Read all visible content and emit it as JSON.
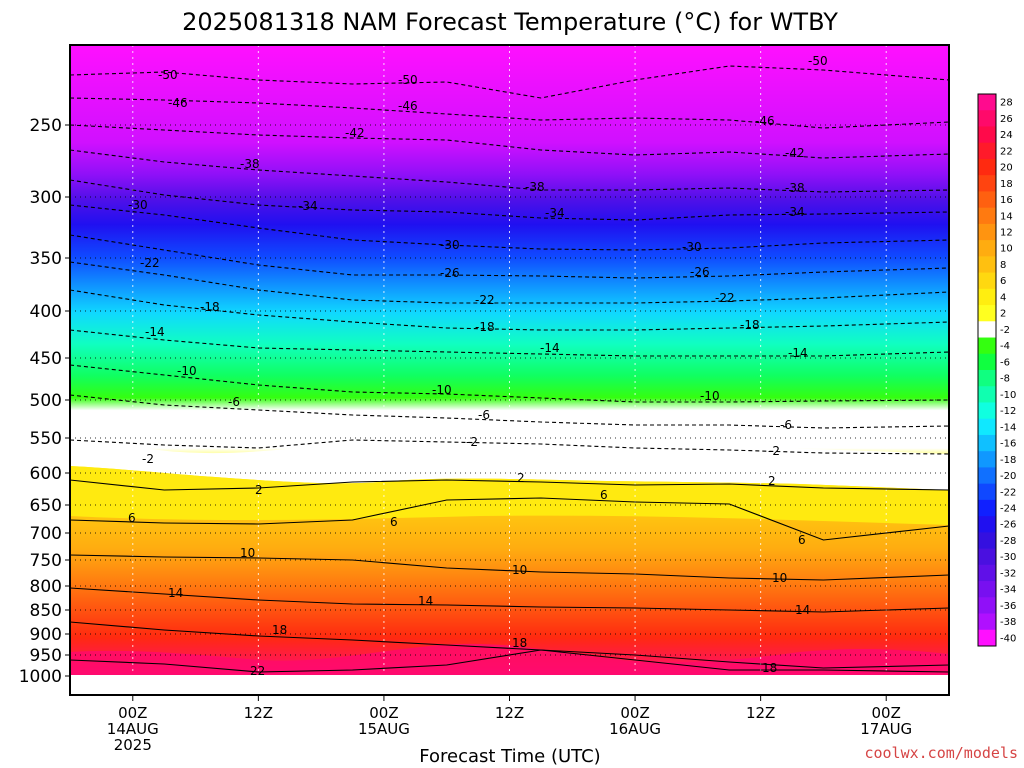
{
  "chart_data": {
    "type": "heatmap",
    "title": "2025081318 NAM Forecast Temperature (°C) for WTBY",
    "xlabel": "Forecast Time (UTC)",
    "ylabel": "",
    "credit": "coolwx.com/models",
    "pressure_levels": [
      "250",
      "300",
      "350",
      "400",
      "450",
      "500",
      "550",
      "600",
      "650",
      "700",
      "750",
      "800",
      "850",
      "900",
      "950",
      "1000"
    ],
    "ylim": [
      200,
      1000
    ],
    "x_ticks": [
      {
        "hour": 6,
        "line1": "00Z",
        "line2": "14AUG",
        "line3": "2025"
      },
      {
        "hour": 18,
        "line1": "12Z",
        "line2": "",
        "line3": ""
      },
      {
        "hour": 30,
        "line1": "00Z",
        "line2": "15AUG",
        "line3": ""
      },
      {
        "hour": 42,
        "line1": "12Z",
        "line2": "",
        "line3": ""
      },
      {
        "hour": 54,
        "line1": "00Z",
        "line2": "16AUG",
        "line3": ""
      },
      {
        "hour": 66,
        "line1": "12Z",
        "line2": "",
        "line3": ""
      },
      {
        "hour": 78,
        "line1": "00Z",
        "line2": "17AUG",
        "line3": ""
      }
    ],
    "xlim": [
      0,
      84
    ],
    "colorbar_ticks": [
      "28",
      "26",
      "24",
      "22",
      "20",
      "18",
      "16",
      "14",
      "12",
      "10",
      "8",
      "6",
      "4",
      "2",
      "-2",
      "-4",
      "-6",
      "-8",
      "-10",
      "-12",
      "-14",
      "-16",
      "-18",
      "-20",
      "-22",
      "-24",
      "-26",
      "-28",
      "-30",
      "-32",
      "-34",
      "-36",
      "-38",
      "-40"
    ],
    "colorbar_colors": [
      "#ff0b8e",
      "#ff0a6a",
      "#ff0a4a",
      "#ff1a2a",
      "#ff2a10",
      "#ff4410",
      "#ff6010",
      "#ff7a10",
      "#ff9410",
      "#ffac10",
      "#ffc010",
      "#ffd810",
      "#ffee10",
      "#ffff20",
      "#ffffff",
      "#34ff10",
      "#10ff40",
      "#10ff80",
      "#10ffb0",
      "#10ffe0",
      "#10e8ff",
      "#10c0ff",
      "#1098ff",
      "#1070ff",
      "#1048ff",
      "#1020ff",
      "#2010f0",
      "#3410e0",
      "#4a10e0",
      "#6010e8",
      "#7810f0",
      "#9010f8",
      "#b010ff",
      "#ff10ff"
    ],
    "series": [
      {
        "temp": -50,
        "values": [
          [
            0,
            -50
          ],
          [
            30,
            -50
          ],
          [
            48,
            -51
          ],
          [
            60,
            -50
          ],
          [
            72,
            -49
          ],
          [
            84,
            -50
          ]
        ]
      },
      {
        "temp": -46,
        "values": [
          [
            0,
            -46
          ],
          [
            30,
            -46
          ],
          [
            48,
            -47
          ],
          [
            72,
            -46
          ],
          [
            84,
            -46
          ]
        ]
      },
      {
        "temp": -42,
        "values": [
          [
            0,
            -42
          ],
          [
            30,
            -42
          ],
          [
            60,
            -43
          ],
          [
            84,
            -42
          ]
        ]
      },
      {
        "temp": -38,
        "values": [
          [
            0,
            -38
          ],
          [
            30,
            -37
          ],
          [
            60,
            -38
          ],
          [
            84,
            -38
          ]
        ]
      },
      {
        "temp": -34,
        "values": [
          [
            0,
            -34
          ],
          [
            30,
            -34
          ],
          [
            60,
            -34
          ],
          [
            84,
            -34
          ]
        ]
      },
      {
        "temp": -30,
        "values": [
          [
            0,
            -30
          ],
          [
            30,
            -30
          ],
          [
            60,
            -30
          ],
          [
            84,
            -30
          ]
        ]
      },
      {
        "temp": -26,
        "values": [
          [
            0,
            -26
          ],
          [
            30,
            -26
          ],
          [
            60,
            -26
          ],
          [
            84,
            -26
          ]
        ]
      },
      {
        "temp": -22,
        "values": [
          [
            0,
            -22
          ],
          [
            30,
            -22
          ],
          [
            60,
            -22
          ],
          [
            84,
            -22
          ]
        ]
      },
      {
        "temp": -18,
        "values": [
          [
            0,
            -18
          ],
          [
            30,
            -18
          ],
          [
            60,
            -18
          ],
          [
            84,
            -18
          ]
        ]
      },
      {
        "temp": -14,
        "values": [
          [
            0,
            -14
          ],
          [
            30,
            -14
          ],
          [
            60,
            -14
          ],
          [
            84,
            -14
          ]
        ]
      },
      {
        "temp": -10,
        "values": [
          [
            0,
            -10
          ],
          [
            30,
            -10
          ],
          [
            60,
            -10
          ],
          [
            84,
            -10
          ]
        ]
      },
      {
        "temp": -6,
        "values": [
          [
            0,
            -6
          ],
          [
            30,
            -6
          ],
          [
            60,
            -6
          ],
          [
            84,
            -6
          ]
        ]
      },
      {
        "temp": -2,
        "values": [
          [
            0,
            -2
          ],
          [
            30,
            -2
          ],
          [
            60,
            -2
          ],
          [
            84,
            -2
          ]
        ]
      },
      {
        "temp": 2,
        "values": [
          [
            0,
            2
          ],
          [
            30,
            2
          ],
          [
            60,
            2
          ],
          [
            84,
            2
          ]
        ]
      },
      {
        "temp": 6,
        "values": [
          [
            0,
            6
          ],
          [
            30,
            6
          ],
          [
            60,
            6
          ],
          [
            84,
            6
          ]
        ]
      },
      {
        "temp": 10,
        "values": [
          [
            0,
            10
          ],
          [
            30,
            10
          ],
          [
            60,
            10
          ],
          [
            84,
            10
          ]
        ]
      },
      {
        "temp": 14,
        "values": [
          [
            0,
            14
          ],
          [
            30,
            14
          ],
          [
            60,
            14
          ],
          [
            84,
            14
          ]
        ]
      },
      {
        "temp": 18,
        "values": [
          [
            0,
            18
          ],
          [
            30,
            18
          ],
          [
            60,
            18
          ],
          [
            84,
            18
          ]
        ]
      },
      {
        "temp": 22,
        "values": [
          [
            0,
            22
          ],
          [
            30,
            22
          ],
          [
            60,
            22
          ],
          [
            84,
            22
          ]
        ]
      }
    ]
  },
  "labels": {
    "m50a": "-50",
    "m50b": "-50",
    "m50c": "-50",
    "m46a": "-46",
    "m46b": "-46",
    "m46c": "-46",
    "m42a": "-42",
    "m42b": "-42",
    "m38a": "-38",
    "m38b": "-38",
    "m38c": "-38",
    "m34a": "-34",
    "m34b": "-34",
    "m34c": "-34",
    "m30a": "-30",
    "m30b": "-30",
    "m30c": "-30",
    "m26a": "-26",
    "m26b": "-26",
    "m22a": "-22",
    "m22b": "-22",
    "m22c": "-22",
    "m18a": "-18",
    "m18b": "-18",
    "m18c": "-18",
    "m14a": "-14",
    "m14b": "-14",
    "m14c": "-14",
    "m10a": "-10",
    "m10b": "-10",
    "m10c": "-10",
    "m6a": "-6",
    "m6b": "-6",
    "m6c": "-6",
    "m2a": "-2",
    "m2b": "-2",
    "m2c": "-2",
    "p2a": "2",
    "p2b": "2",
    "p2c": "2",
    "p6a": "6",
    "p6b": "6",
    "p6c": "6",
    "p6d": "6",
    "p10a": "10",
    "p10b": "10",
    "p10c": "10",
    "p14a": "14",
    "p14b": "14",
    "p14c": "14",
    "p18a": "18",
    "p18b": "18",
    "p18c": "18",
    "p22a": "22"
  }
}
